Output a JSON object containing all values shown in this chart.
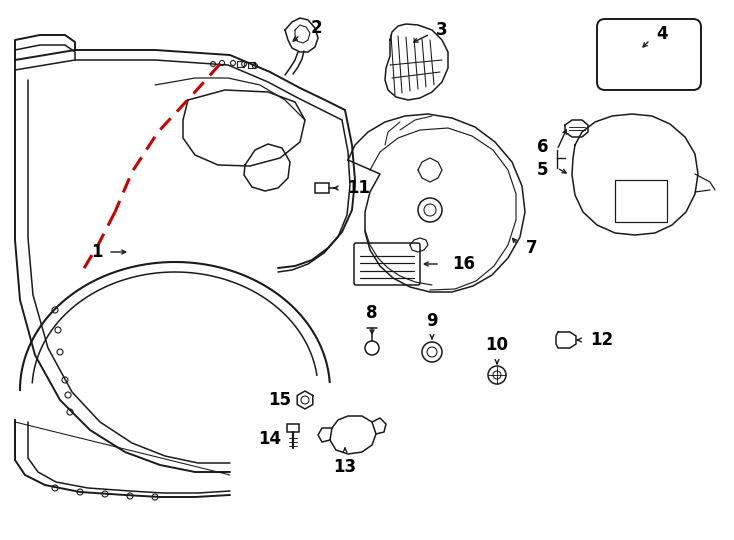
{
  "bg_color": "#ffffff",
  "line_color": "#1a1a1a",
  "red_color": "#cc0000",
  "lw": 1.1,
  "fig_width": 7.34,
  "fig_height": 5.4,
  "dpi": 100
}
